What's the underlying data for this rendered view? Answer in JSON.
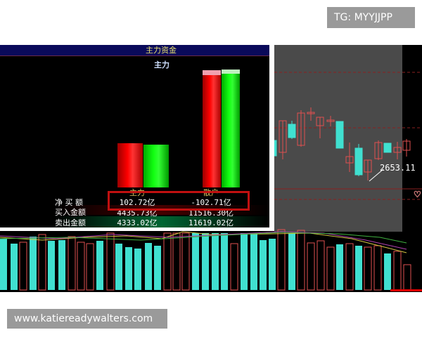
{
  "watermark_top": "TG: MYYJJPP",
  "watermark_bottom": "www.katiereadywalters.com",
  "panel": {
    "title": "主力资金",
    "subtitle": "主力",
    "columns": [
      "主力",
      "散户"
    ],
    "rows": [
      {
        "label": "净 买 额",
        "values": [
          "102.72亿",
          "-102.71亿"
        ]
      },
      {
        "label": "买入金额",
        "values": [
          "4435.73亿",
          "11516.30亿"
        ]
      },
      {
        "label": "卖出金额",
        "values": [
          "4333.02亿",
          "11619.02亿"
        ]
      }
    ]
  },
  "chart": {
    "low_label": "2653.11",
    "heart_icon": "heart-icon"
  },
  "colors": {
    "up": "#e05050",
    "down": "#40e0d0",
    "buy_bar": "#ff0000",
    "sell_bar": "#00ee00",
    "highlight_box": "#c01010"
  }
}
